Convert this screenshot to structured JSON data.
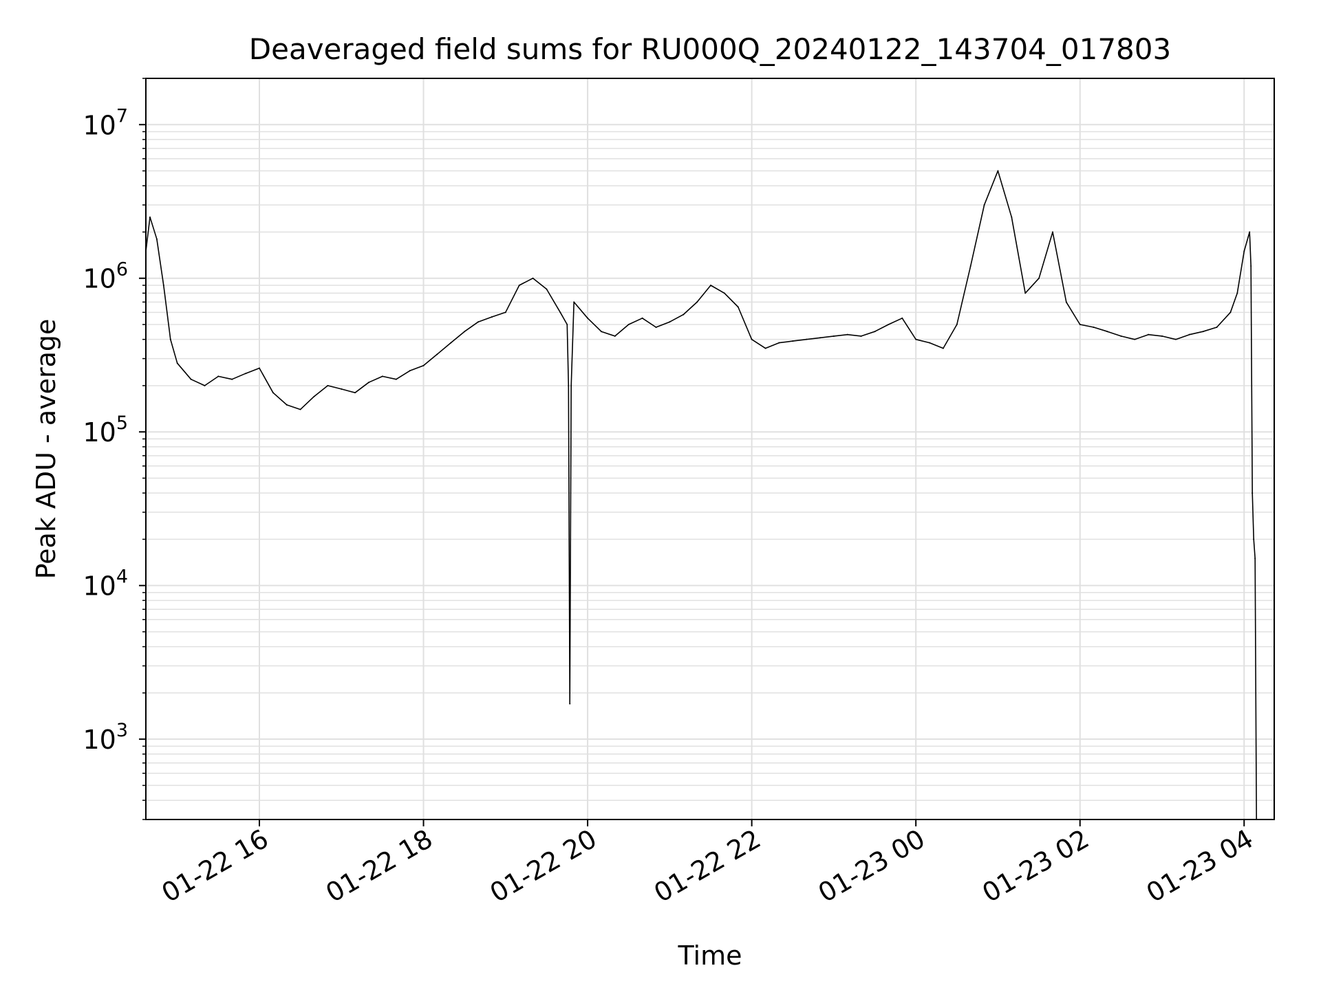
{
  "chart_data": {
    "type": "line",
    "title": "Deaveraged field sums for RU000Q_20240122_143704_017803",
    "xlabel": "Time",
    "ylabel": "Peak ADU - average",
    "yscale": "log",
    "ylim": [
      300,
      20000000
    ],
    "xlim": [
      "2024-01-22 14:37",
      "2024-01-23 04:22"
    ],
    "grid": true,
    "grid_color": "#e0e0e0",
    "line_color": "#000000",
    "x_ticks": [
      {
        "value": "2024-01-22 16:00",
        "label": "01-22 16"
      },
      {
        "value": "2024-01-22 18:00",
        "label": "01-22 18"
      },
      {
        "value": "2024-01-22 20:00",
        "label": "01-22 20"
      },
      {
        "value": "2024-01-22 22:00",
        "label": "01-22 22"
      },
      {
        "value": "2024-01-23 00:00",
        "label": "01-23 00"
      },
      {
        "value": "2024-01-23 02:00",
        "label": "01-23 02"
      },
      {
        "value": "2024-01-23 04:00",
        "label": "01-23 04"
      }
    ],
    "y_ticks": [
      {
        "value": 1000,
        "base": "10",
        "exp": "3"
      },
      {
        "value": 10000,
        "base": "10",
        "exp": "4"
      },
      {
        "value": 100000,
        "base": "10",
        "exp": "5"
      },
      {
        "value": 1000000,
        "base": "10",
        "exp": "6"
      },
      {
        "value": 10000000,
        "base": "10",
        "exp": "7"
      }
    ],
    "series": [
      {
        "x": [
          "2024-01-22 14:37",
          "2024-01-22 14:40",
          "2024-01-22 14:45",
          "2024-01-22 14:50",
          "2024-01-22 14:55",
          "2024-01-22 15:00",
          "2024-01-22 15:10",
          "2024-01-22 15:20",
          "2024-01-22 15:30",
          "2024-01-22 15:40",
          "2024-01-22 15:50",
          "2024-01-22 16:00",
          "2024-01-22 16:10",
          "2024-01-22 16:20",
          "2024-01-22 16:30",
          "2024-01-22 16:40",
          "2024-01-22 16:50",
          "2024-01-22 17:00",
          "2024-01-22 17:10",
          "2024-01-22 17:20",
          "2024-01-22 17:30",
          "2024-01-22 17:40",
          "2024-01-22 17:50",
          "2024-01-22 18:00",
          "2024-01-22 18:10",
          "2024-01-22 18:20",
          "2024-01-22 18:30",
          "2024-01-22 18:40",
          "2024-01-22 18:50",
          "2024-01-22 19:00",
          "2024-01-22 19:10",
          "2024-01-22 19:20",
          "2024-01-22 19:30",
          "2024-01-22 19:40",
          "2024-01-22 19:45",
          "2024-01-22 19:46",
          "2024-01-22 19:47",
          "2024-01-22 19:48",
          "2024-01-22 19:50",
          "2024-01-22 20:00",
          "2024-01-22 20:10",
          "2024-01-22 20:20",
          "2024-01-22 20:30",
          "2024-01-22 20:40",
          "2024-01-22 20:50",
          "2024-01-22 21:00",
          "2024-01-22 21:10",
          "2024-01-22 21:20",
          "2024-01-22 21:30",
          "2024-01-22 21:40",
          "2024-01-22 21:50",
          "2024-01-22 22:00",
          "2024-01-22 22:10",
          "2024-01-22 22:20",
          "2024-01-22 22:30",
          "2024-01-22 22:40",
          "2024-01-22 22:50",
          "2024-01-22 23:00",
          "2024-01-22 23:10",
          "2024-01-22 23:20",
          "2024-01-22 23:30",
          "2024-01-22 23:40",
          "2024-01-22 23:50",
          "2024-01-23 00:00",
          "2024-01-23 00:10",
          "2024-01-23 00:20",
          "2024-01-23 00:30",
          "2024-01-23 00:40",
          "2024-01-23 00:50",
          "2024-01-23 01:00",
          "2024-01-23 01:10",
          "2024-01-23 01:20",
          "2024-01-23 01:30",
          "2024-01-23 01:40",
          "2024-01-23 01:50",
          "2024-01-23 02:00",
          "2024-01-23 02:10",
          "2024-01-23 02:20",
          "2024-01-23 02:30",
          "2024-01-23 02:40",
          "2024-01-23 02:50",
          "2024-01-23 03:00",
          "2024-01-23 03:10",
          "2024-01-23 03:20",
          "2024-01-23 03:30",
          "2024-01-23 03:40",
          "2024-01-23 03:50",
          "2024-01-23 03:55",
          "2024-01-23 04:00",
          "2024-01-23 04:04",
          "2024-01-23 04:05",
          "2024-01-23 04:06",
          "2024-01-23 04:07",
          "2024-01-23 04:08",
          "2024-01-23 04:09"
        ],
        "values": [
          1500000,
          2500000,
          1800000,
          900000,
          400000,
          280000,
          220000,
          200000,
          230000,
          220000,
          240000,
          260000,
          180000,
          150000,
          140000,
          170000,
          200000,
          190000,
          180000,
          210000,
          230000,
          220000,
          250000,
          270000,
          320000,
          380000,
          450000,
          520000,
          560000,
          600000,
          900000,
          1000000,
          850000,
          600000,
          500000,
          200000,
          1700,
          200000,
          700000,
          550000,
          450000,
          420000,
          500000,
          550000,
          480000,
          520000,
          580000,
          700000,
          900000,
          800000,
          650000,
          400000,
          350000,
          380000,
          390000,
          400000,
          410000,
          420000,
          430000,
          420000,
          450000,
          500000,
          550000,
          400000,
          380000,
          350000,
          500000,
          1200000,
          3000000,
          5000000,
          2500000,
          800000,
          1000000,
          2000000,
          700000,
          500000,
          480000,
          450000,
          420000,
          400000,
          430000,
          420000,
          400000,
          430000,
          450000,
          480000,
          600000,
          800000,
          1500000,
          2000000,
          1200000,
          40000,
          20000,
          15000,
          300
        ]
      }
    ]
  }
}
